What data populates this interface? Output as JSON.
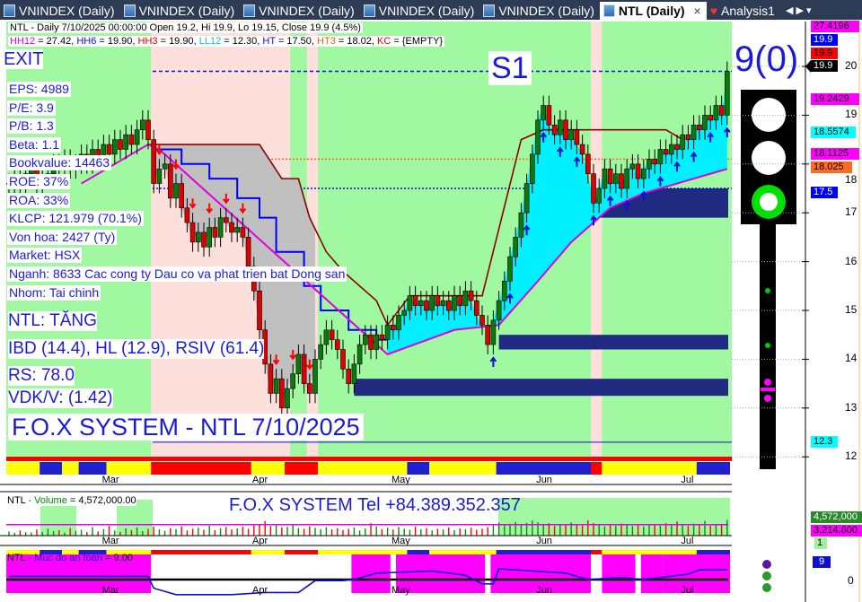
{
  "tabs": [
    {
      "label": "VNINDEX (Daily)",
      "active": false
    },
    {
      "label": "VNINDEX (Daily)",
      "active": false
    },
    {
      "label": "VNINDEX (Daily)",
      "active": false
    },
    {
      "label": "VNINDEX (Daily)",
      "active": false
    },
    {
      "label": "VNINDEX (Daily)",
      "active": false
    },
    {
      "label": "NTL (Daily)",
      "active": true
    },
    {
      "label": "Analysis1",
      "active": false
    }
  ],
  "tab_close": "×",
  "tab_nav": "◀ ▶ ▾",
  "header": {
    "line1": "NTL - Daily 7/10/2025 00:00:00 Open 19.2, Hi 19.9, Lo 19.15, Close 19.9 (4.5%)",
    "params": [
      {
        "k": "HH12",
        "v": " = 27.42, ",
        "color": "#e000e0"
      },
      {
        "k": "HH6",
        "v": " = 19.90, ",
        "color": "#1010c0"
      },
      {
        "k": "HH3",
        "v": " = 19.90, ",
        "color": "#e00000"
      },
      {
        "k": "LL12",
        "v": " = 12.30, ",
        "color": "#00c8e8"
      },
      {
        "k": "HT",
        "v": "  = 17.50, ",
        "color": "#1010c0"
      },
      {
        "k": "HT3",
        "v": "  = 18.02, ",
        "color": "#f06010"
      },
      {
        "k": "KC",
        "v": " = {EMPTY}",
        "color": "#e00000"
      }
    ]
  },
  "overlay": {
    "exit": "EXIT",
    "s1": "S1",
    "score": "9(0)",
    "fundamentals": [
      "EPS: 4989",
      "P/E: 3.9",
      "P/B: 1.3",
      "Beta: 1.1",
      "Bookvalue: 14463",
      "ROE: 37%",
      "ROA: 33%",
      "KLCP: 121.979 (70.1%)",
      "Von hoa: 2427 (Ty)",
      "Market: HSX",
      "Nganh: 8633 Cac cong ty Dau co va phat trien bat Dong san",
      "Nhom: Tai chinh"
    ],
    "signals": [
      "NTL: TĂNG",
      "IBD (14.4), HL (12.9), RSIV (61.4)",
      "RS: 78.0",
      "VDK/V:  (1.42)"
    ],
    "system_title": "F.O.X SYSTEM - NTL 7/10/2025",
    "tel": "F.O.X SYSTEM Tel +84.389.352.357"
  },
  "traffic_light": {
    "red": "off",
    "yellow": "off",
    "green": "on",
    "colors": {
      "on": "#00e000",
      "off": "#ffffff"
    }
  },
  "price_tags": [
    {
      "value": "27.4196",
      "bg": "#ff00ff",
      "fg": "#000"
    },
    {
      "value": "19.9",
      "bg": "#0000ff",
      "fg": "#fff"
    },
    {
      "value": "19.9",
      "bg": "#ff0000",
      "fg": "#000"
    },
    {
      "value": "19.9",
      "bg": "#000000",
      "fg": "#fff"
    },
    {
      "value": "19.2429",
      "bg": "#ff00ff",
      "fg": "#000"
    },
    {
      "value": "18.5574",
      "bg": "#00ffff",
      "fg": "#000"
    },
    {
      "value": "18.1125",
      "bg": "#ff00ff",
      "fg": "#000"
    },
    {
      "value": "18.025",
      "bg": "#ff6a20",
      "fg": "#000"
    },
    {
      "value": "17.5",
      "bg": "#0000ff",
      "fg": "#fff"
    },
    {
      "value": "12.3",
      "bg": "#00ffff",
      "fg": "#000"
    }
  ],
  "volume_panel": {
    "title_sym": "NTL",
    "title_name": " - Volume",
    "title_val": " = 4,572,000.00",
    "tags": [
      "4,572,000",
      "3,214,600",
      "1"
    ]
  },
  "safety_panel": {
    "title_sym": "NTL",
    "title_name": " - Muc do an toan",
    "title_val": " = 9.00",
    "tag": "9",
    "tick": "0"
  },
  "chart_data": {
    "type": "candlestick",
    "symbol": "NTL",
    "ylim": [
      11.7,
      20.6
    ],
    "yticks": [
      12,
      13,
      14,
      15,
      16,
      17,
      18,
      19,
      20
    ],
    "month_labels": [
      {
        "label": "Mar",
        "bar": 18
      },
      {
        "label": "Apr",
        "bar": 45
      },
      {
        "label": "May",
        "bar": 70
      },
      {
        "label": "Jun",
        "bar": 96
      },
      {
        "label": "Jul",
        "bar": 122
      }
    ],
    "close": [
      17.6,
      17.7,
      17.5,
      17.8,
      17.9,
      17.6,
      17.7,
      17.8,
      18.0,
      17.9,
      18.1,
      17.9,
      18.0,
      18.2,
      18.0,
      18.3,
      18.1,
      18.4,
      18.2,
      18.5,
      18.3,
      18.6,
      18.4,
      18.7,
      18.9,
      18.5,
      17.6,
      17.9,
      18.0,
      17.3,
      17.6,
      17.1,
      16.8,
      16.4,
      16.6,
      16.3,
      16.7,
      16.5,
      16.9,
      16.8,
      16.6,
      16.7,
      16.5,
      15.9,
      15.4,
      14.6,
      13.9,
      13.3,
      13.6,
      13.0,
      13.4,
      13.7,
      14.1,
      13.5,
      13.3,
      14.0,
      14.3,
      14.6,
      14.4,
      14.2,
      13.8,
      13.5,
      13.9,
      14.3,
      14.5,
      14.2,
      14.5,
      14.4,
      14.7,
      14.6,
      14.9,
      15.0,
      15.3,
      15.1,
      15.2,
      15.0,
      15.3,
      15.1,
      15.2,
      15.0,
      15.3,
      15.1,
      15.4,
      15.2,
      14.9,
      14.7,
      14.3,
      14.8,
      15.2,
      15.6,
      16.1,
      16.5,
      17.0,
      17.6,
      18.2,
      18.9,
      19.2,
      18.8,
      18.6,
      18.9,
      18.5,
      18.7,
      18.4,
      18.2,
      17.8,
      17.2,
      17.5,
      17.9,
      17.6,
      17.8,
      17.5,
      17.9,
      18.0,
      17.7,
      17.9,
      18.1,
      18.0,
      18.3,
      18.2,
      18.4,
      18.3,
      18.6,
      18.5,
      18.8,
      18.7,
      19.0,
      18.9,
      19.2,
      19.0,
      19.9
    ],
    "volume_m": [
      1.2,
      0.8,
      1.5,
      1.0,
      0.9,
      1.8,
      1.1,
      2.0,
      1.3,
      1.6,
      0.9,
      2.2,
      1.4,
      1.7,
      1.0,
      2.5,
      1.2,
      1.9,
      2.8,
      1.5,
      1.1,
      2.1,
      1.6,
      2.4,
      1.3,
      2.0,
      2.6,
      1.8,
      1.4,
      2.2,
      1.9,
      2.7,
      1.5,
      2.0,
      2.3,
      1.7,
      2.9,
      1.6,
      2.2,
      2.5,
      1.8,
      2.1,
      2.6,
      2.0,
      3.0,
      3.4,
      4.2,
      2.8,
      3.0,
      2.4,
      2.6,
      3.1,
      2.2,
      2.0,
      2.7,
      2.3,
      1.9,
      2.5,
      1.8,
      2.2,
      1.6,
      2.0,
      2.4,
      1.5,
      2.1,
      3.6,
      2.7,
      1.9,
      2.3,
      1.8,
      2.5,
      2.0,
      1.7,
      2.6,
      1.9,
      2.2,
      1.5,
      2.0,
      1.8,
      2.4,
      1.6,
      2.1,
      1.9,
      2.3,
      1.7,
      2.0,
      2.5,
      3.0,
      3.8,
      3.2,
      3.5,
      4.0,
      3.3,
      3.7,
      4.4,
      3.9,
      3.1,
      3.6,
      2.8,
      3.4,
      3.0,
      3.8,
      3.2,
      2.9,
      4.5,
      3.6,
      3.1,
      2.7,
      3.3,
      2.9,
      3.5,
      3.0,
      2.8,
      3.2,
      2.7,
      3.1,
      3.4,
      2.9,
      3.6,
      3.0,
      4.1,
      3.3,
      2.8,
      3.5,
      3.0,
      4.3,
      2.9,
      3.4,
      3.2,
      4.6
    ],
    "volume_ma_m": 3.2146,
    "trailing_stop": [
      [
        25,
        18.4
      ],
      [
        45,
        18.4
      ],
      [
        49,
        17.7
      ],
      [
        52,
        17.7
      ],
      [
        54,
        16.9
      ],
      [
        57,
        16.2
      ],
      [
        60,
        15.8
      ],
      [
        66,
        15.2
      ],
      [
        68,
        14.7
      ],
      [
        72,
        15.3
      ],
      [
        85,
        15.3
      ],
      [
        92,
        18.5
      ],
      [
        96,
        18.7
      ],
      [
        118,
        18.7
      ],
      [
        121,
        18.5
      ]
    ],
    "blue_step": [
      [
        26,
        18.3
      ],
      [
        31,
        18.0
      ],
      [
        36,
        17.7
      ],
      [
        41,
        17.3
      ],
      [
        45,
        16.9
      ],
      [
        48,
        16.2
      ],
      [
        53,
        15.5
      ],
      [
        56,
        15.0
      ],
      [
        61,
        14.6
      ],
      [
        66,
        14.4
      ],
      [
        68,
        14.4
      ]
    ],
    "support_line": [
      [
        13,
        17.6
      ],
      [
        25,
        18.4
      ],
      [
        27,
        18.3
      ],
      [
        68,
        14.1
      ],
      [
        80,
        14.6
      ],
      [
        88,
        14.7
      ],
      [
        95,
        15.6
      ],
      [
        101,
        16.4
      ],
      [
        108,
        17.1
      ],
      [
        114,
        17.4
      ],
      [
        129,
        17.9
      ]
    ],
    "bear_ranges": [
      [
        26,
        50
      ],
      [
        54,
        55
      ],
      [
        105,
        106
      ]
    ],
    "levels": [
      {
        "value": 19.9,
        "color": "#1010d0",
        "style": "dash"
      },
      {
        "value": 18.1,
        "color": "#ff6a20",
        "style": "dot"
      },
      {
        "value": 17.5,
        "color": "#1010d0",
        "style": "dot"
      },
      {
        "value": 12.3,
        "color": "#1010d0",
        "style": "solid"
      }
    ],
    "zones": [
      {
        "from_bar": 106,
        "low": 16.9,
        "high": 17.5
      },
      {
        "from_bar": 88,
        "low": 14.2,
        "high": 14.5
      },
      {
        "from_bar": 62,
        "low": 13.25,
        "high": 13.6
      }
    ],
    "status_strip": [
      {
        "from": 0,
        "to": 6,
        "color": "#ffff00"
      },
      {
        "from": 6,
        "to": 10,
        "color": "#2020d0"
      },
      {
        "from": 10,
        "to": 13,
        "color": "#ffff00"
      },
      {
        "from": 13,
        "to": 18,
        "color": "#2020d0"
      },
      {
        "from": 18,
        "to": 26,
        "color": "#ffff00"
      },
      {
        "from": 26,
        "to": 44,
        "color": "#ff0000"
      },
      {
        "from": 44,
        "to": 50,
        "color": "#ffff00"
      },
      {
        "from": 50,
        "to": 56,
        "color": "#ff0000"
      },
      {
        "from": 56,
        "to": 72,
        "color": "#ffff00"
      },
      {
        "from": 72,
        "to": 76,
        "color": "#2020d0"
      },
      {
        "from": 76,
        "to": 88,
        "color": "#ffff00"
      },
      {
        "from": 88,
        "to": 105,
        "color": "#2020d0"
      },
      {
        "from": 105,
        "to": 107,
        "color": "#ff0000"
      },
      {
        "from": 107,
        "to": 124,
        "color": "#ffff00"
      },
      {
        "from": 124,
        "to": 130,
        "color": "#2020d0"
      }
    ],
    "safety_line": [
      [
        0,
        9.3
      ],
      [
        25,
        9.3
      ],
      [
        26,
        8.2
      ],
      [
        30,
        7.6
      ],
      [
        40,
        7.6
      ],
      [
        46,
        7.8
      ],
      [
        52,
        7.8
      ],
      [
        55,
        8.9
      ],
      [
        60,
        8.9
      ],
      [
        62,
        9.0
      ],
      [
        66,
        9.6
      ],
      [
        76,
        9.8
      ],
      [
        82,
        9.4
      ],
      [
        85,
        8.6
      ],
      [
        87,
        8.6
      ],
      [
        88,
        10.0
      ],
      [
        100,
        9.6
      ],
      [
        104,
        9.0
      ],
      [
        110,
        9.2
      ],
      [
        114,
        9.0
      ],
      [
        117,
        9.2
      ],
      [
        122,
        9.5
      ],
      [
        124,
        9.9
      ],
      [
        129,
        9.9
      ]
    ]
  }
}
